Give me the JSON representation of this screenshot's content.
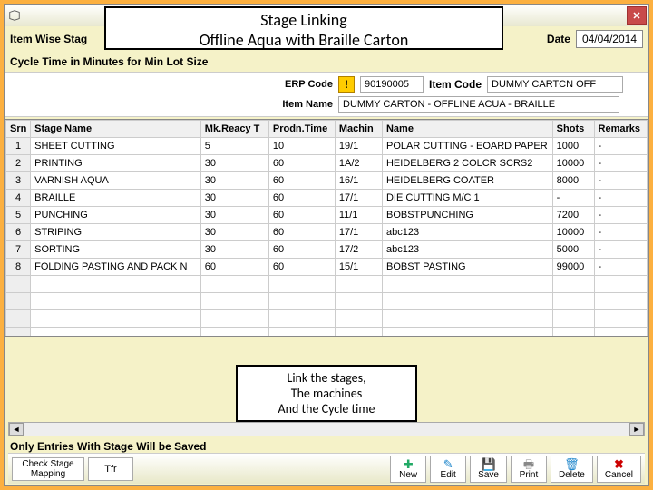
{
  "overlay": {
    "title_line1": "Stage Linking",
    "title_line2": "Offline Aqua with Braille Carton",
    "note_line1": "Link the stages,",
    "note_line2": "The machines",
    "note_line3": "And the Cycle time"
  },
  "header": {
    "item_wise_label": "Item Wise Stag",
    "date_label": "Date",
    "date_value": "04/04/2014",
    "cycle_label": "Cycle Time in Minutes for Min Lot Size"
  },
  "form": {
    "erp_label": "ERP Code",
    "erp_value": "90190005",
    "item_code_label": "Item Code",
    "item_code_value": "DUMMY CARTCN   OFF",
    "item_name_label": "Item Name",
    "item_name_value": "DUMMY CARTON - OFFLINE ACUA - BRAILLE"
  },
  "table": {
    "headers": {
      "sr": "Srn",
      "stage": "Stage Name",
      "mk": "Mk.Reacy T",
      "prod": "Prodn.Time",
      "mach": "Machin",
      "name": "Name",
      "shots": "Shots",
      "rem": "Remarks"
    },
    "rows": [
      {
        "sr": "1",
        "stage": "SHEET CUTTING",
        "mk": "5",
        "prod": "10",
        "mach": "19/1",
        "name": "POLAR CUTTING - EOARD PAPER",
        "shots": "1000",
        "rem": "-"
      },
      {
        "sr": "2",
        "stage": "PRINTING",
        "mk": "30",
        "prod": "60",
        "mach": "1A/2",
        "name": "HEIDELBERG 2 COLCR SCRS2",
        "shots": "10000",
        "rem": "-"
      },
      {
        "sr": "3",
        "stage": "VARNISH   AQUA",
        "mk": "30",
        "prod": "60",
        "mach": "16/1",
        "name": "HEIDELBERG COATER",
        "shots": "8000",
        "rem": "-"
      },
      {
        "sr": "4",
        "stage": "BRAILLE",
        "mk": "30",
        "prod": "60",
        "mach": "17/1",
        "name": "DIE CUTTING M/C 1",
        "shots": "-",
        "rem": "-"
      },
      {
        "sr": "5",
        "stage": "PUNCHING",
        "mk": "30",
        "prod": "60",
        "mach": "11/1",
        "name": "BOBSTPUNCHING",
        "shots": "7200",
        "rem": "-"
      },
      {
        "sr": "6",
        "stage": "STRIPING",
        "mk": "30",
        "prod": "60",
        "mach": "17/1",
        "name": "abc123",
        "shots": "10000",
        "rem": "-"
      },
      {
        "sr": "7",
        "stage": "SORTING",
        "mk": "30",
        "prod": "60",
        "mach": "17/2",
        "name": "abc123",
        "shots": "5000",
        "rem": "-"
      },
      {
        "sr": "8",
        "stage": "FOLDING PASTING AND PACK N",
        "mk": "60",
        "prod": "60",
        "mach": "15/1",
        "name": "BOBST PASTING",
        "shots": "99000",
        "rem": "-"
      }
    ]
  },
  "footer": {
    "note": "Only Entries With Stage Will be Saved",
    "buttons": {
      "check": "Check Stage Mapping",
      "tfr": "Tfr",
      "new": "New",
      "edit": "Edit",
      "save": "Save",
      "print": "Print",
      "delete": "Delete",
      "cancel": "Cancel"
    }
  }
}
